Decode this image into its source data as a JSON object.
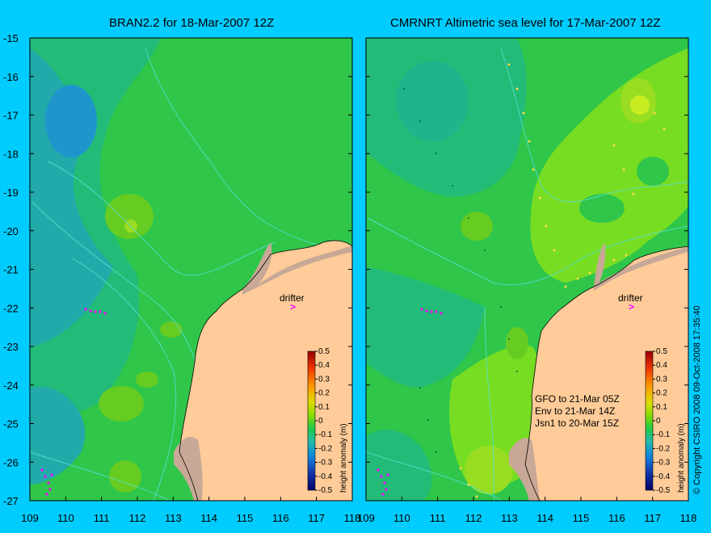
{
  "left_panel": {
    "title": "BRAN2.2 for 18-Mar-2007 12Z",
    "drifter_label": "drifter",
    "drifter_marker": ">",
    "colorbar_label": "height anomaly (m)"
  },
  "right_panel": {
    "title": "CMRNRT Altimetric sea level  for 17-Mar-2007 12Z",
    "drifter_label": "drifter",
    "drifter_marker": ">",
    "colorbar_label": "height anomaly (m)",
    "notes": [
      "GFO to 21-Mar 05Z",
      "Env to 21-Mar 14Z",
      "Jsn1 to 20-Mar 15Z"
    ]
  },
  "y_ticks": [
    "-15",
    "-16",
    "-17",
    "-18",
    "-19",
    "-20",
    "-21",
    "-22",
    "-23",
    "-24",
    "-25",
    "-26",
    "-27"
  ],
  "x_ticks": [
    "109",
    "110",
    "111",
    "112",
    "113",
    "114",
    "115",
    "116",
    "117",
    "118"
  ],
  "colorbar_ticks": [
    "0.5",
    "0.4",
    "0.3",
    "0.2",
    "0.1",
    "0",
    "-0.1",
    "-0.2",
    "-0.3",
    "-0.4",
    "-0.5"
  ],
  "copyright": "© Copyright CSIRO 2008    09-Oct-2008 17:35:40",
  "colors": {
    "background": "#00ccff",
    "land": "#ffcc99",
    "shelf": "#c8a896",
    "sea_main": "#33cc33",
    "sea_low": "#22bb77",
    "sea_lower": "#22aaaa",
    "sea_high": "#99dd22",
    "drifter": "#ff00ff"
  }
}
